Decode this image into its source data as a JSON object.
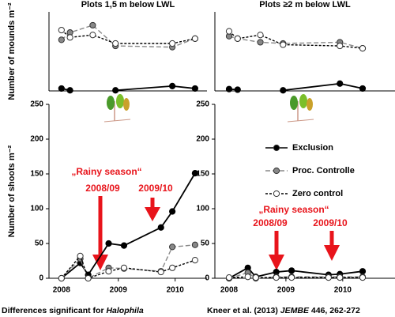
{
  "chart_data": [
    {
      "type": "line",
      "title": "Plots 1,5 m below LWL",
      "ylabel": "Number of mounds m⁻²",
      "xlim": [
        2007.78,
        2010.56
      ],
      "ylim": [
        0,
        6.5
      ],
      "x": [
        2008.0,
        2008.15,
        2008.55,
        2008.95,
        2009.95,
        2010.35
      ],
      "series": [
        {
          "name": "Exclusion",
          "color": "#000000",
          "style": "solid",
          "values": [
            0.2,
            0.05,
            null,
            0.05,
            0.4,
            0.2
          ]
        },
        {
          "name": "Proc. Controlle",
          "color": "#888888",
          "style": "dashed",
          "values": [
            4.2,
            4.8,
            5.4,
            3.7,
            3.6,
            4.3
          ]
        },
        {
          "name": "Zero control",
          "color": "#ffffff",
          "style": "dashed",
          "values": [
            5.0,
            4.4,
            4.6,
            3.9,
            3.9,
            4.3
          ]
        }
      ]
    },
    {
      "type": "line",
      "title": "Plots ≥2 m below LWL",
      "xlim": [
        2007.75,
        2010.92
      ],
      "ylim": [
        0,
        6.5
      ],
      "x": [
        2008.0,
        2008.15,
        2008.55,
        2008.95,
        2009.95,
        2010.35
      ],
      "series": [
        {
          "name": "Exclusion",
          "color": "#000000",
          "style": "solid",
          "values": [
            0.15,
            0.1,
            null,
            0.05,
            0.6,
            0.2
          ]
        },
        {
          "name": "Proc. Controlle",
          "color": "#888888",
          "style": "dashed",
          "values": [
            4.5,
            4.3,
            4.0,
            3.9,
            4.0,
            3.5
          ]
        },
        {
          "name": "Zero control",
          "color": "#ffffff",
          "style": "dashed",
          "values": [
            4.9,
            4.3,
            4.6,
            3.8,
            3.7,
            3.5
          ]
        }
      ]
    },
    {
      "type": "line",
      "ylabel": "Number of shoots m⁻²",
      "xlim": [
        2007.78,
        2010.56
      ],
      "ylim": [
        0,
        250
      ],
      "xticks": [
        2008,
        2009,
        2010
      ],
      "yticks": [
        0,
        50,
        100,
        150,
        200,
        250
      ],
      "x": [
        2008.0,
        2008.33,
        2008.47,
        2008.83,
        2009.1,
        2009.75,
        2009.95,
        2010.35
      ],
      "series": [
        {
          "name": "Exclusion",
          "color": "#000000",
          "style": "solid",
          "values": [
            0,
            22,
            5,
            50,
            47,
            73,
            96,
            151
          ]
        },
        {
          "name": "Proc. Controlle",
          "color": "#888888",
          "style": "dashed",
          "values": [
            0,
            28,
            0,
            15,
            14,
            10,
            45,
            48
          ]
        },
        {
          "name": "Zero control",
          "color": "#ffffff",
          "style": "dashed",
          "values": [
            0,
            32,
            0,
            10,
            15,
            9,
            15,
            26
          ]
        }
      ],
      "annotations": [
        "„Rainy season“",
        "2008/09",
        "2009/10"
      ]
    },
    {
      "type": "line",
      "xlim": [
        2007.75,
        2010.92
      ],
      "ylim": [
        0,
        250
      ],
      "xticks": [
        2008,
        2009,
        2010
      ],
      "yticks": [
        0,
        50,
        100,
        150,
        200,
        250
      ],
      "x": [
        2008.0,
        2008.33,
        2008.47,
        2008.83,
        2009.1,
        2009.75,
        2009.95,
        2010.35
      ],
      "series": [
        {
          "name": "Exclusion",
          "color": "#000000",
          "style": "solid",
          "values": [
            0,
            15,
            2,
            9,
            11,
            5,
            6,
            10
          ]
        },
        {
          "name": "Proc. Controlle",
          "color": "#888888",
          "style": "dashed",
          "values": [
            0,
            8,
            0,
            2,
            2,
            2,
            2,
            2
          ]
        },
        {
          "name": "Zero control",
          "color": "#ffffff",
          "style": "dashed",
          "values": [
            1,
            2,
            1,
            1,
            1,
            1,
            1,
            1
          ]
        }
      ],
      "legend": true,
      "annotations": [
        "„Rainy season“",
        "2008/09",
        "2009/10"
      ]
    }
  ],
  "footer": {
    "left": [
      "Differences significant for ",
      "Halophila"
    ],
    "right": [
      "Kneer et al. (2013) ",
      "JEMBE",
      " 446, 262-272"
    ]
  }
}
